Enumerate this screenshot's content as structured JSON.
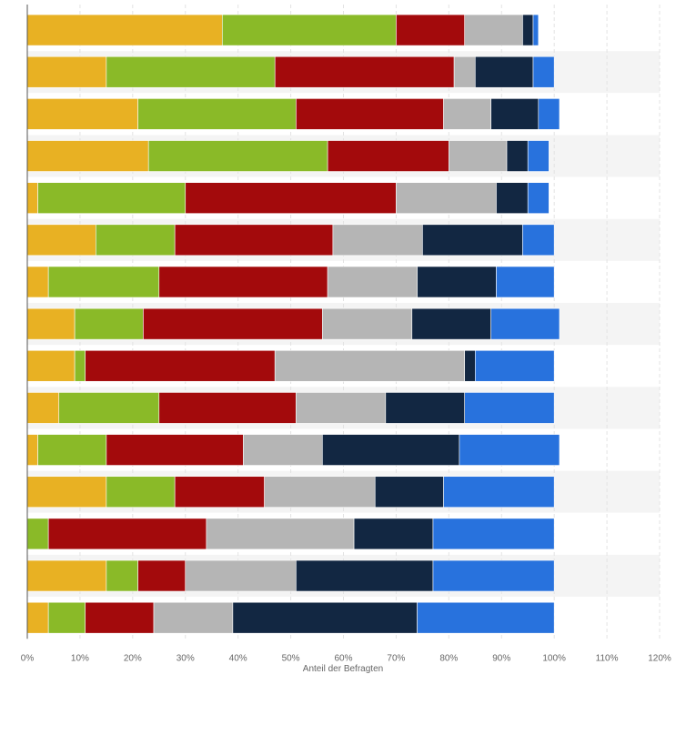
{
  "chart_data": {
    "type": "bar",
    "orientation": "horizontal",
    "stacked": true,
    "xlabel": "Anteil der Befragten",
    "xlim": [
      0,
      120
    ],
    "x_ticks": [
      "0%",
      "10%",
      "20%",
      "30%",
      "40%",
      "50%",
      "60%",
      "70%",
      "80%",
      "90%",
      "100%",
      "110%",
      "120%"
    ],
    "grid": true,
    "legend": "none",
    "series": [
      {
        "color": "#e8b123",
        "values": [
          37,
          15,
          21,
          23,
          2,
          13,
          4,
          9,
          9,
          6,
          2,
          15,
          0,
          15,
          4
        ]
      },
      {
        "color": "#8aba28",
        "values": [
          33,
          32,
          30,
          34,
          28,
          15,
          21,
          13,
          2,
          19,
          13,
          13,
          4,
          6,
          7
        ]
      },
      {
        "color": "#a30a0c",
        "values": [
          13,
          34,
          28,
          23,
          40,
          30,
          32,
          34,
          36,
          26,
          26,
          17,
          30,
          9,
          13
        ]
      },
      {
        "color": "#b5b5b5",
        "values": [
          11,
          4,
          9,
          11,
          19,
          17,
          17,
          17,
          36,
          17,
          15,
          21,
          28,
          21,
          15
        ]
      },
      {
        "color": "#122742",
        "values": [
          2,
          11,
          9,
          4,
          6,
          19,
          15,
          15,
          2,
          15,
          26,
          13,
          15,
          26,
          35
        ]
      },
      {
        "color": "#2872dd",
        "values": [
          1,
          4,
          4,
          4,
          4,
          6,
          11,
          13,
          15,
          17,
          19,
          21,
          23,
          23,
          26
        ]
      }
    ]
  }
}
